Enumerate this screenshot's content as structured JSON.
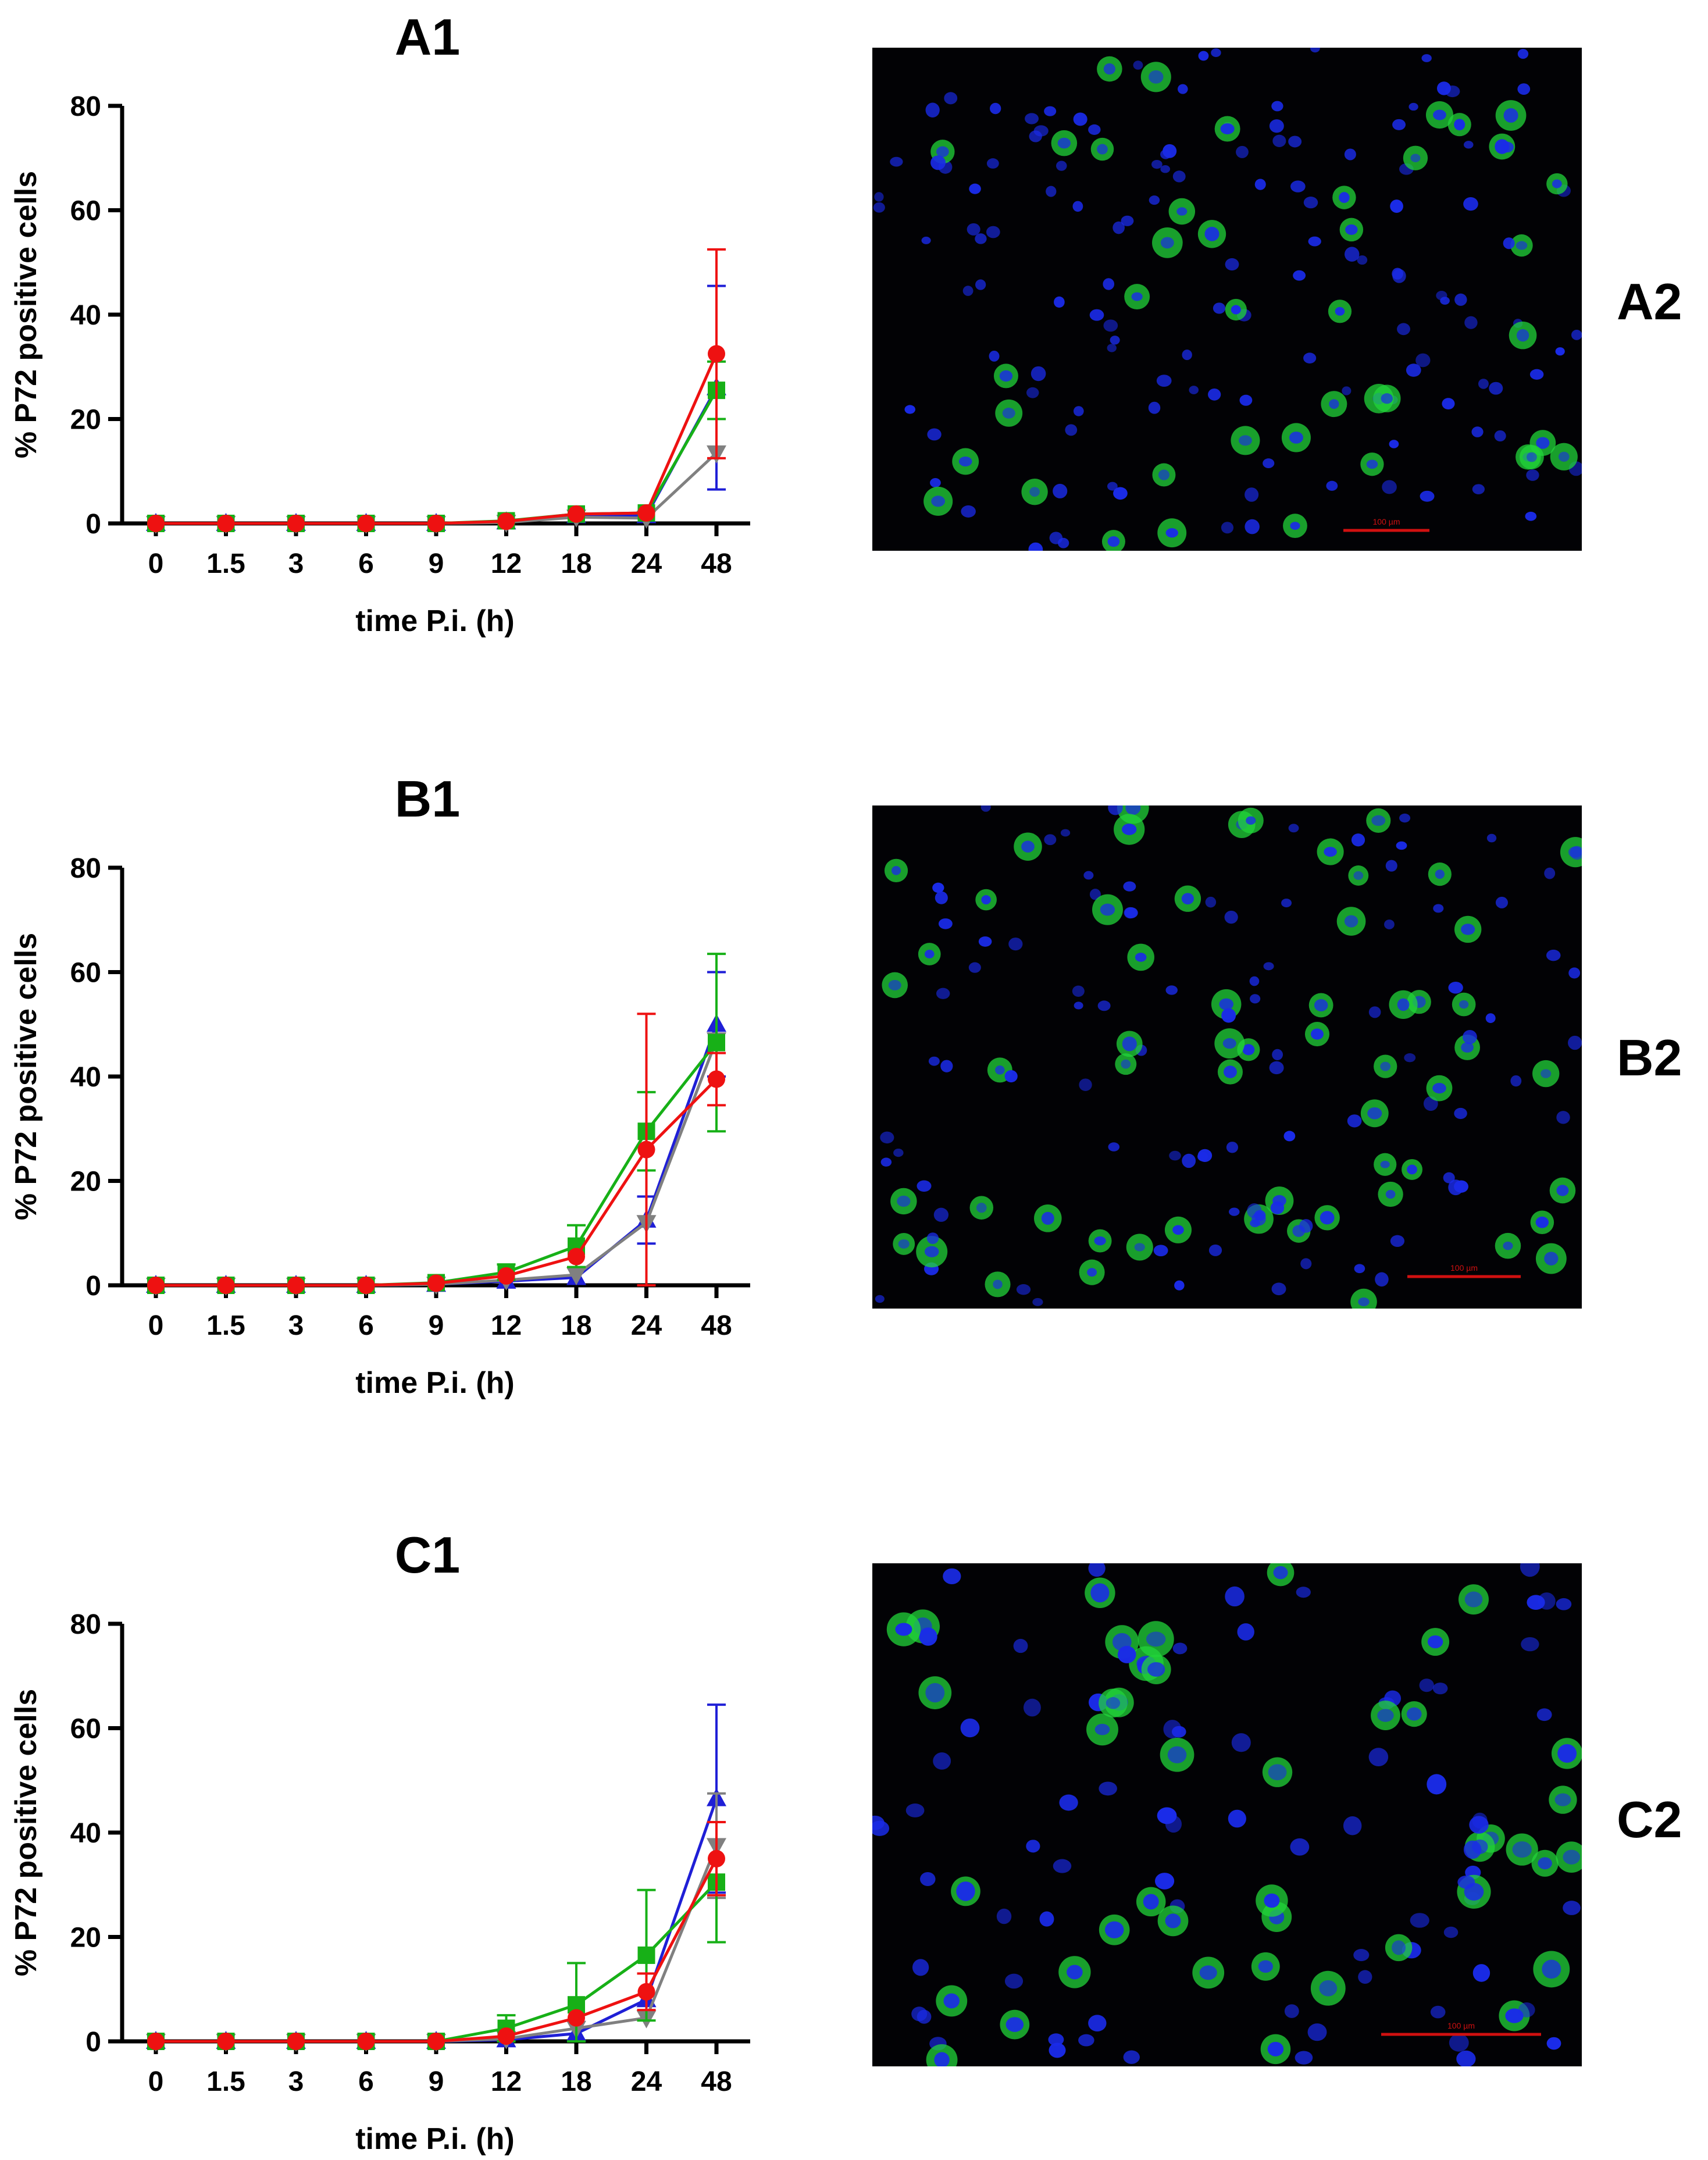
{
  "panels": [
    {
      "chart_title": "A1",
      "image_label": "A2",
      "scale_bar_label": "100 µm"
    },
    {
      "chart_title": "B1",
      "image_label": "B2",
      "scale_bar_label": "100 µm"
    },
    {
      "chart_title": "C1",
      "image_label": "C2",
      "scale_bar_label": "100 µm"
    }
  ],
  "colors": {
    "blue": "#1f1fd6",
    "gray": "#808080",
    "green": "#17b017",
    "red": "#ee1111",
    "micrograph_bg": "#020205",
    "nucleus": "#1a2be8",
    "cytoplasm": "#22d43a",
    "scale_bar": "#d01010"
  },
  "chart_data": [
    {
      "type": "line",
      "title": "A1",
      "xlabel": "time P.i. (h)",
      "ylabel": "% P72 positive cells",
      "categories": [
        "0",
        "1.5",
        "3",
        "6",
        "9",
        "12",
        "18",
        "24",
        "48"
      ],
      "ylim": [
        0,
        80
      ],
      "yticks": [
        0,
        20,
        40,
        60,
        80
      ],
      "series": [
        {
          "marker": "triangle-up",
          "color": "#1f1fd6",
          "values": [
            0,
            0,
            0,
            0,
            0,
            0.3,
            1.5,
            1.5,
            26
          ],
          "err": [
            0,
            0,
            0,
            0,
            0,
            0,
            0,
            0,
            19.5
          ]
        },
        {
          "marker": "triangle-down",
          "color": "#808080",
          "values": [
            0,
            0,
            0,
            0,
            0,
            0.2,
            1.2,
            1.0,
            13.5
          ],
          "err": [
            0,
            0,
            0,
            0,
            0,
            0,
            0,
            0,
            0
          ]
        },
        {
          "marker": "square",
          "color": "#17b017",
          "values": [
            0,
            0,
            0,
            0,
            0,
            0.5,
            1.8,
            2.0,
            25.5
          ],
          "err": [
            0,
            0,
            0,
            0,
            0,
            0,
            0,
            0,
            5.5
          ]
        },
        {
          "marker": "circle",
          "color": "#ee1111",
          "values": [
            0,
            0,
            0,
            0,
            0,
            0.4,
            1.8,
            2.0,
            32.5
          ],
          "err": [
            0,
            0,
            0,
            0,
            0,
            0,
            0,
            0,
            20
          ]
        }
      ]
    },
    {
      "type": "line",
      "title": "B1",
      "xlabel": "time P.i. (h)",
      "ylabel": "% P72 positive cells",
      "categories": [
        "0",
        "1.5",
        "3",
        "6",
        "9",
        "12",
        "18",
        "24",
        "48"
      ],
      "ylim": [
        0,
        80
      ],
      "yticks": [
        0,
        20,
        40,
        60,
        80
      ],
      "series": [
        {
          "marker": "triangle-up",
          "color": "#1f1fd6",
          "values": [
            0,
            0,
            0,
            0,
            0.2,
            0.8,
            1.5,
            12.5,
            50
          ],
          "err": [
            0,
            0,
            0,
            0,
            0,
            0,
            0,
            4.5,
            10
          ]
        },
        {
          "marker": "triangle-down",
          "color": "#808080",
          "values": [
            0,
            0,
            0,
            0,
            0.2,
            1.0,
            2.0,
            12.0,
            47
          ],
          "err": [
            0,
            0,
            0,
            0,
            0,
            0,
            0,
            0,
            0
          ]
        },
        {
          "marker": "square",
          "color": "#17b017",
          "values": [
            0,
            0,
            0,
            0,
            0.5,
            2.5,
            7.5,
            29.5,
            46.5
          ],
          "err": [
            0,
            0,
            0,
            0,
            0,
            1.5,
            4.0,
            7.5,
            17
          ]
        },
        {
          "marker": "circle",
          "color": "#ee1111",
          "values": [
            0,
            0,
            0,
            0,
            0.4,
            1.8,
            5.5,
            26,
            39.5
          ],
          "err": [
            0,
            0,
            0,
            0,
            0,
            0,
            0,
            26,
            5
          ]
        }
      ]
    },
    {
      "type": "line",
      "title": "C1",
      "xlabel": "time P.i. (h)",
      "ylabel": "% P72 positive cells",
      "categories": [
        "0",
        "1.5",
        "3",
        "6",
        "9",
        "12",
        "18",
        "24",
        "48"
      ],
      "ylim": [
        0,
        80
      ],
      "yticks": [
        0,
        20,
        40,
        60,
        80
      ],
      "series": [
        {
          "marker": "triangle-up",
          "color": "#1f1fd6",
          "values": [
            0,
            0,
            0,
            0,
            0,
            0.3,
            1.5,
            8.0,
            46.5
          ],
          "err": [
            0,
            0,
            0,
            0,
            0,
            0,
            0,
            0,
            18
          ]
        },
        {
          "marker": "triangle-down",
          "color": "#808080",
          "values": [
            0,
            0,
            0,
            0,
            0,
            0.5,
            2.5,
            4.5,
            37.5
          ],
          "err": [
            0,
            0,
            0,
            0,
            0,
            0,
            0,
            0,
            10
          ]
        },
        {
          "marker": "square",
          "color": "#17b017",
          "values": [
            0,
            0,
            0,
            0,
            0,
            2.5,
            7.0,
            16.5,
            30.5
          ],
          "err": [
            0,
            0,
            0,
            0,
            0,
            2.5,
            8.0,
            12.5,
            11.5
          ]
        },
        {
          "marker": "circle",
          "color": "#ee1111",
          "values": [
            0,
            0,
            0,
            0,
            0,
            1.0,
            4.5,
            9.5,
            35
          ],
          "err": [
            0,
            0,
            0,
            0,
            0,
            0,
            0,
            3.5,
            7
          ]
        }
      ]
    }
  ]
}
